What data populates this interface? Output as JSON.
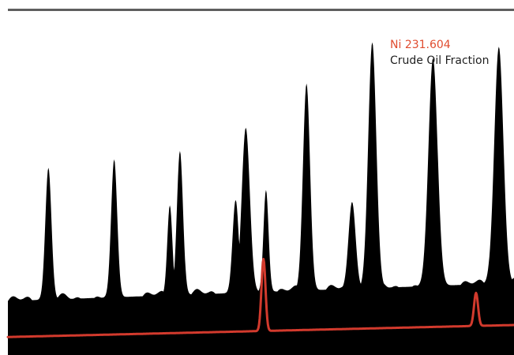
{
  "colors": {
    "background": "#ffffff",
    "rule": "#5f5f5f",
    "black_series": "#000000",
    "red_series": "#d23a2d",
    "legend_red_text": "#e04c2f",
    "legend_dark_text": "#1f1f1f"
  },
  "legend": {
    "line1": "Ni 231.604",
    "line2": "Crude Oil Fraction"
  },
  "chart_data": {
    "type": "area",
    "title": "",
    "xlabel": "",
    "ylabel": "",
    "grid": false,
    "xlim": [
      0,
      1
    ],
    "ylim": [
      0,
      1
    ],
    "series": [
      {
        "name": "Crude Oil Fraction",
        "style": "filled",
        "baseline": [
          0.18,
          0.24
        ],
        "peaks": [
          {
            "x": 0.08,
            "y": 0.44,
            "w": 0.006
          },
          {
            "x": 0.21,
            "y": 0.46,
            "w": 0.006
          },
          {
            "x": 0.34,
            "y": 0.48,
            "w": 0.006
          },
          {
            "x": 0.47,
            "y": 0.55,
            "w": 0.008
          },
          {
            "x": 0.51,
            "y": 0.34,
            "w": 0.005
          },
          {
            "x": 0.59,
            "y": 0.69,
            "w": 0.007
          },
          {
            "x": 0.72,
            "y": 0.82,
            "w": 0.008
          },
          {
            "x": 0.84,
            "y": 0.76,
            "w": 0.009
          },
          {
            "x": 0.97,
            "y": 0.79,
            "w": 0.009
          },
          {
            "x": 0.32,
            "y": 0.3,
            "w": 0.005
          },
          {
            "x": 0.45,
            "y": 0.31,
            "w": 0.006
          },
          {
            "x": 0.68,
            "y": 0.29,
            "w": 0.007
          }
        ]
      },
      {
        "name": "Ni 231.604",
        "style": "line",
        "baseline": [
          0.06,
          0.1
        ],
        "peaks": [
          {
            "x": 0.505,
            "y": 0.24,
            "w": 0.004
          },
          {
            "x": 0.925,
            "y": 0.11,
            "w": 0.004
          }
        ]
      }
    ]
  }
}
